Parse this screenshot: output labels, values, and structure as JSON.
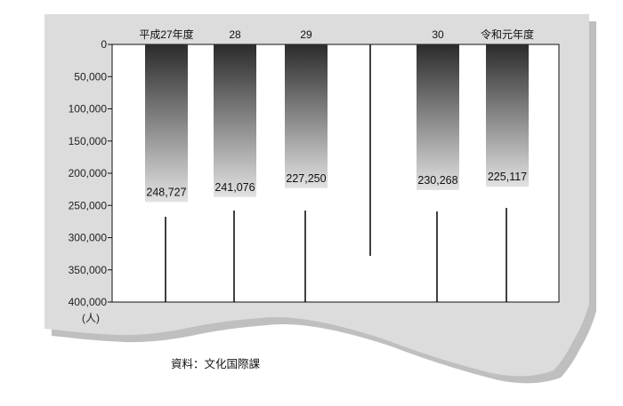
{
  "chart_data": {
    "type": "bar",
    "orientation": "vertical-downward",
    "categories": [
      "平成27年度",
      "28",
      "29",
      "30",
      "令和元年度"
    ],
    "values": [
      248727,
      241076,
      227250,
      230268,
      225117
    ],
    "value_labels": [
      "248,727",
      "241,076",
      "227,250",
      "230,268",
      "225,117"
    ],
    "y_ticks": [
      "0",
      "50,000",
      "100,000",
      "150,000",
      "200,000",
      "250,000",
      "300,000",
      "350,000",
      "400,000"
    ],
    "y_tick_values": [
      0,
      50000,
      100000,
      150000,
      200000,
      250000,
      300000,
      350000,
      400000
    ],
    "ylim": [
      0,
      400000
    ],
    "y_inverted": true,
    "y_unit": "(人)",
    "source": "資料：文化国際課",
    "grid": false,
    "legend": "none"
  },
  "colors": {
    "panel": "#dcdcdc",
    "panel_shadow": "#bfbfbf",
    "plot_background": "#ffffff",
    "bar_top": "#2b2b2b",
    "bar_bottom": "#e2e2e2",
    "axis": "#111111"
  }
}
